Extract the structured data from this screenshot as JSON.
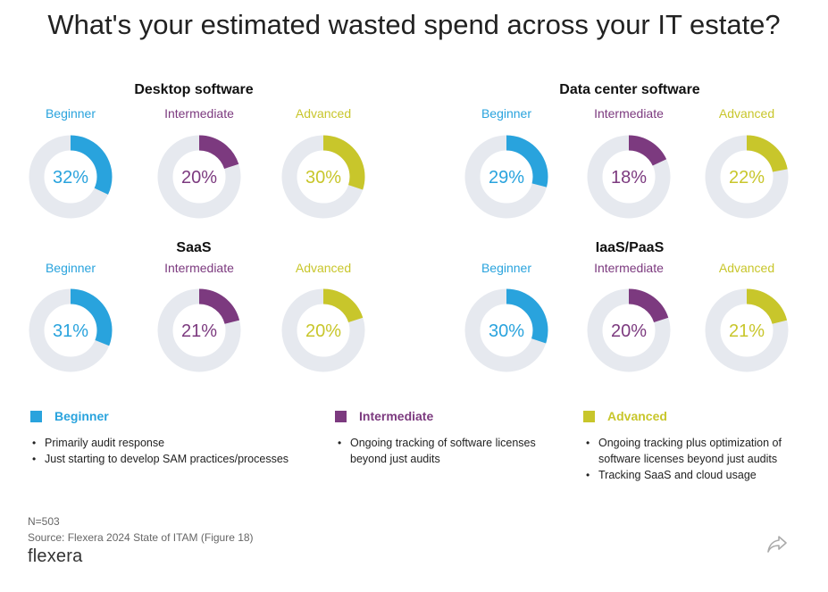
{
  "title": "What's your estimated wasted spend across your IT estate?",
  "colors": {
    "beginner": "#29a3dd",
    "intermediate": "#7c3a7f",
    "advanced": "#c8c62b",
    "track": "#e6e9ef"
  },
  "chart_data": {
    "type": "donut",
    "unit": "%",
    "levels": [
      "Beginner",
      "Intermediate",
      "Advanced"
    ],
    "groups": [
      {
        "name": "Desktop software",
        "values": [
          32,
          20,
          30
        ]
      },
      {
        "name": "Data center software",
        "values": [
          29,
          18,
          22
        ]
      },
      {
        "name": "SaaS",
        "values": [
          31,
          21,
          20
        ]
      },
      {
        "name": "IaaS/PaaS",
        "values": [
          30,
          20,
          21
        ]
      }
    ]
  },
  "legend": {
    "beginner": {
      "label": "Beginner",
      "items": [
        "Primarily audit response",
        "Just starting to develop SAM practices/processes"
      ]
    },
    "intermediate": {
      "label": "Intermediate",
      "items": [
        "Ongoing tracking of software licenses beyond just audits"
      ]
    },
    "advanced": {
      "label": "Advanced",
      "items": [
        "Ongoing tracking plus optimization of software licenses beyond just audits",
        "Tracking SaaS and cloud usage"
      ]
    }
  },
  "footer": {
    "n": "N=503",
    "source": "Source: Flexera 2024 State of ITAM (Figure 18)",
    "logo": "flexera",
    "share_icon": "share-icon"
  }
}
